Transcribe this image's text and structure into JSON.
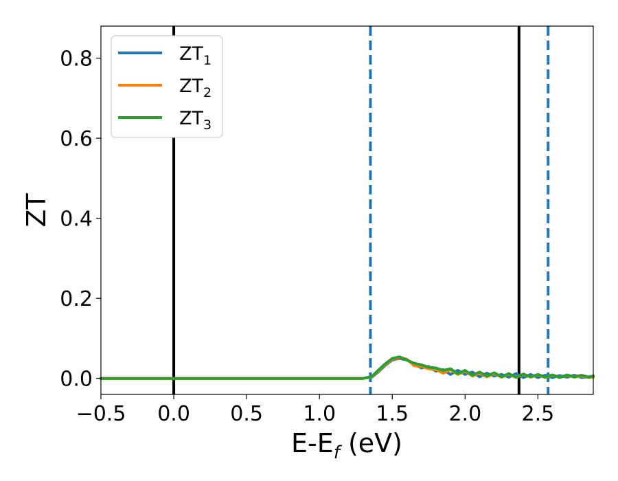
{
  "chart_data": {
    "type": "line",
    "xlabel": {
      "main": "E-E",
      "sub": "f",
      "unit": " (eV)"
    },
    "ylabel": "ZT",
    "xlim": [
      -0.5,
      2.88
    ],
    "ylim": [
      -0.04,
      0.88
    ],
    "xticks": [
      -0.5,
      0.0,
      0.5,
      1.0,
      1.5,
      2.0,
      2.5
    ],
    "xtick_labels": [
      "−0.5",
      "0.0",
      "0.5",
      "1.0",
      "1.5",
      "2.0",
      "2.5"
    ],
    "yticks": [
      0.0,
      0.2,
      0.4,
      0.6,
      0.8
    ],
    "ytick_labels": [
      "0.0",
      "0.2",
      "0.4",
      "0.6",
      "0.8"
    ],
    "grid": false,
    "legend_position": "top-left",
    "vlines": [
      {
        "x": 0.0,
        "style": "solid",
        "color": "#000000"
      },
      {
        "x": 2.37,
        "style": "solid",
        "color": "#000000"
      },
      {
        "x": 1.35,
        "style": "dashed",
        "color": "#1f77b4"
      },
      {
        "x": 2.57,
        "style": "dashed",
        "color": "#1f77b4"
      }
    ],
    "series": [
      {
        "name": "ZT",
        "sub": "1",
        "color": "#1f77b4",
        "x": [
          -0.5,
          1.3,
          1.36,
          1.4,
          1.45,
          1.5,
          1.55,
          1.6,
          1.65,
          1.7,
          1.75,
          1.8,
          1.85,
          1.9,
          1.95,
          2.0,
          2.05,
          2.1,
          2.15,
          2.2,
          2.25,
          2.3,
          2.35,
          2.4,
          2.45,
          2.5,
          2.55,
          2.6,
          2.65,
          2.7,
          2.75,
          2.8,
          2.85,
          2.88
        ],
        "values": [
          0.0,
          0.0,
          0.003,
          0.015,
          0.032,
          0.046,
          0.05,
          0.046,
          0.035,
          0.026,
          0.03,
          0.018,
          0.022,
          0.01,
          0.02,
          0.01,
          0.016,
          0.004,
          0.013,
          0.006,
          0.01,
          0.003,
          0.012,
          0.002,
          0.01,
          0.002,
          0.008,
          0.002,
          0.007,
          0.003,
          0.008,
          0.002,
          0.004,
          0.006
        ]
      },
      {
        "name": "ZT",
        "sub": "2",
        "color": "#ff7f0e",
        "x": [
          -0.5,
          1.3,
          1.36,
          1.4,
          1.45,
          1.5,
          1.55,
          1.6,
          1.65,
          1.7,
          1.75,
          1.8,
          1.85,
          1.9,
          1.95,
          2.0,
          2.05,
          2.1,
          2.15,
          2.2,
          2.25,
          2.3,
          2.35,
          2.4,
          2.45,
          2.5,
          2.55,
          2.6,
          2.65,
          2.7,
          2.75,
          2.8,
          2.85,
          2.88
        ],
        "values": [
          0.0,
          0.0,
          0.004,
          0.017,
          0.034,
          0.048,
          0.052,
          0.048,
          0.032,
          0.03,
          0.024,
          0.022,
          0.013,
          0.022,
          0.01,
          0.018,
          0.006,
          0.013,
          0.004,
          0.012,
          0.003,
          0.011,
          0.002,
          0.01,
          0.003,
          0.009,
          0.002,
          0.008,
          0.002,
          0.008,
          0.003,
          0.006,
          0.002,
          0.003
        ]
      },
      {
        "name": "ZT",
        "sub": "3",
        "color": "#2ca02c",
        "x": [
          -0.5,
          1.3,
          1.36,
          1.4,
          1.45,
          1.5,
          1.55,
          1.6,
          1.65,
          1.7,
          1.75,
          1.8,
          1.85,
          1.9,
          1.95,
          2.0,
          2.05,
          2.1,
          2.15,
          2.2,
          2.25,
          2.3,
          2.35,
          2.4,
          2.45,
          2.5,
          2.55,
          2.6,
          2.65,
          2.7,
          2.75,
          2.8,
          2.85,
          2.88
        ],
        "values": [
          0.0,
          0.0,
          0.005,
          0.019,
          0.036,
          0.05,
          0.054,
          0.046,
          0.038,
          0.034,
          0.028,
          0.026,
          0.02,
          0.024,
          0.012,
          0.02,
          0.008,
          0.016,
          0.006,
          0.014,
          0.004,
          0.012,
          0.003,
          0.011,
          0.004,
          0.01,
          0.003,
          0.009,
          0.002,
          0.009,
          0.004,
          0.008,
          0.003,
          0.006
        ]
      }
    ]
  }
}
